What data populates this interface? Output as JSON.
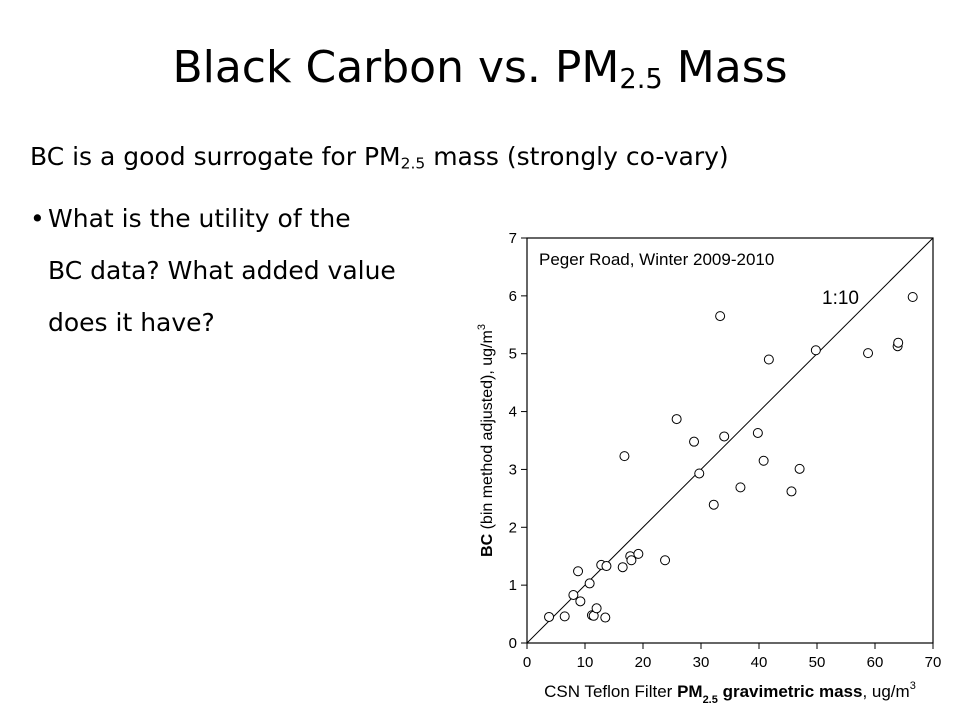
{
  "slide": {
    "title_main": "Black Carbon vs. PM",
    "title_sub": "2.5",
    "title_tail": " Mass",
    "line1_main": "BC is a good surrogate for PM",
    "line1_sub": "2.5",
    "line1_tail": " mass (strongly co-vary)",
    "bullet_lines": [
      "What is the utility of the",
      "BC data?  What added value",
      "does it have?"
    ]
  },
  "chart_data": {
    "type": "scatter",
    "annotation": "Peger Road, Winter 2009-2010",
    "reference_line": {
      "label": "1:10",
      "slope": 0.1
    },
    "xlabel_prefix": "CSN Teflon Filter ",
    "xlabel_bold": "PM",
    "xlabel_bold_sub": "2.5",
    "xlabel_bold_tail": " gravimetric mass",
    "xlabel_unit": ", ug/m",
    "xlabel_unit_sup": "3",
    "ylabel_bold": "BC",
    "ylabel_rest": " (bin method adjusted), ug/m",
    "ylabel_sup": "3",
    "xlim": [
      0,
      70
    ],
    "ylim": [
      0,
      7
    ],
    "xticks": [
      0,
      10,
      20,
      30,
      40,
      50,
      60,
      70
    ],
    "yticks": [
      0,
      1,
      2,
      3,
      4,
      5,
      6,
      7
    ],
    "grid": false,
    "points": [
      {
        "x": 3.8,
        "y": 0.45
      },
      {
        "x": 6.5,
        "y": 0.46
      },
      {
        "x": 8.0,
        "y": 0.83
      },
      {
        "x": 8.8,
        "y": 1.24
      },
      {
        "x": 9.2,
        "y": 0.72
      },
      {
        "x": 10.8,
        "y": 1.03
      },
      {
        "x": 11.2,
        "y": 0.48
      },
      {
        "x": 11.5,
        "y": 0.47
      },
      {
        "x": 12.0,
        "y": 0.6
      },
      {
        "x": 12.8,
        "y": 1.35
      },
      {
        "x": 13.5,
        "y": 0.44
      },
      {
        "x": 13.7,
        "y": 1.33
      },
      {
        "x": 16.5,
        "y": 1.31
      },
      {
        "x": 16.8,
        "y": 3.23
      },
      {
        "x": 17.8,
        "y": 1.5
      },
      {
        "x": 18.0,
        "y": 1.43
      },
      {
        "x": 19.2,
        "y": 1.54
      },
      {
        "x": 23.8,
        "y": 1.43
      },
      {
        "x": 25.8,
        "y": 3.87
      },
      {
        "x": 28.8,
        "y": 3.48
      },
      {
        "x": 29.7,
        "y": 2.93
      },
      {
        "x": 32.2,
        "y": 2.39
      },
      {
        "x": 33.3,
        "y": 5.65
      },
      {
        "x": 34.0,
        "y": 3.57
      },
      {
        "x": 36.8,
        "y": 2.69
      },
      {
        "x": 39.8,
        "y": 3.63
      },
      {
        "x": 40.8,
        "y": 3.15
      },
      {
        "x": 41.7,
        "y": 4.9
      },
      {
        "x": 45.6,
        "y": 2.62
      },
      {
        "x": 47.0,
        "y": 3.01
      },
      {
        "x": 49.8,
        "y": 5.06
      },
      {
        "x": 58.8,
        "y": 5.01
      },
      {
        "x": 63.9,
        "y": 5.13
      },
      {
        "x": 64.0,
        "y": 5.19
      },
      {
        "x": 66.5,
        "y": 5.98
      }
    ]
  }
}
